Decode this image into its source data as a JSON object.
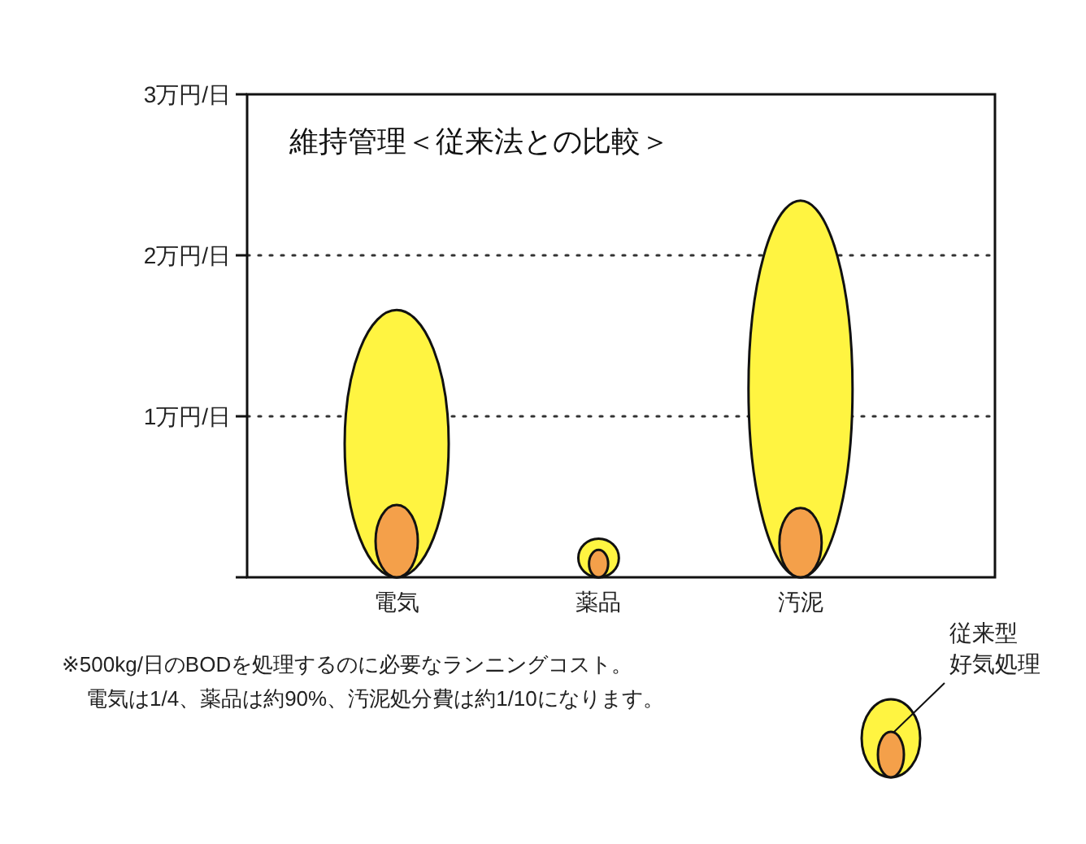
{
  "chart_data": {
    "type": "bar",
    "title": "維持管理＜従来法との比較＞",
    "categories": [
      "電気",
      "薬品",
      "汚泥"
    ],
    "series": [
      {
        "name": "従来型好気処理",
        "color": "#fff441",
        "values": [
          1.66,
          0.24,
          2.34
        ]
      },
      {
        "color": "#f4a04a",
        "values": [
          0.45,
          0.17,
          0.43
        ]
      }
    ],
    "ylim": [
      0,
      3
    ],
    "yticks": [
      {
        "value": 0,
        "label": null
      },
      {
        "value": 1,
        "label": "1万円/日"
      },
      {
        "value": 2,
        "label": "2万円/日"
      },
      {
        "value": 3,
        "label": "3万円/日"
      }
    ],
    "grid": "y",
    "legend": "bottom right",
    "annotations": [
      "※500kg/日のBODを処理するのに必要なランニングコスト。",
      "電気は1/4、薬品は約90%、汚泥処分費は約1/10になります。"
    ]
  }
}
